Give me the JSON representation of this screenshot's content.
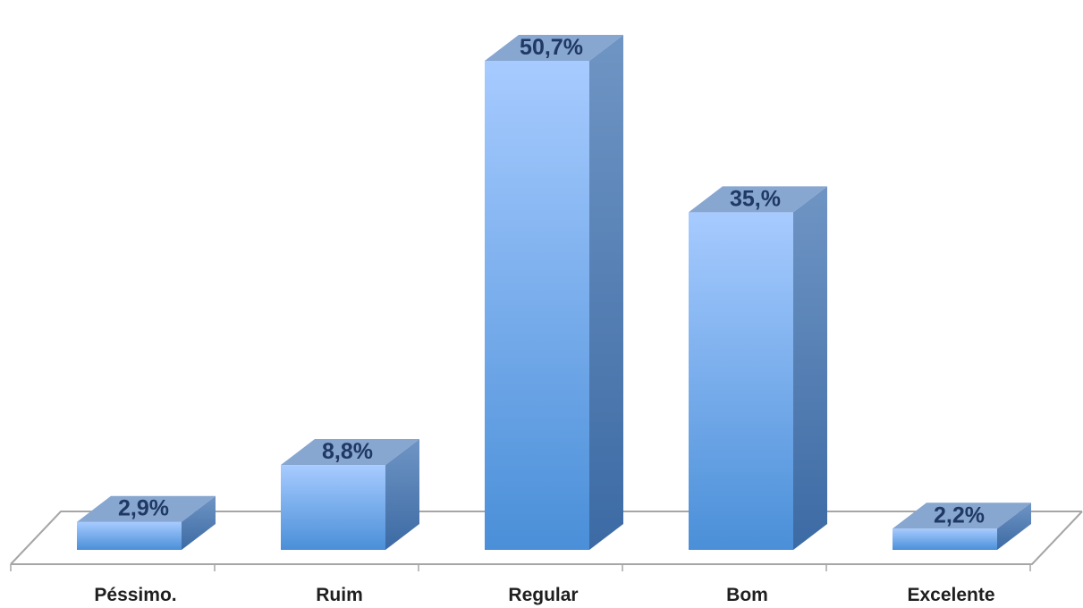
{
  "chart_data": {
    "type": "bar",
    "three_d": true,
    "categories": [
      "Péssimo.",
      "Ruim",
      "Regular",
      "Bom",
      "Excelente"
    ],
    "values": [
      2.9,
      8.8,
      50.7,
      35.0,
      2.2
    ],
    "value_labels": [
      "2,9%",
      "8,8%",
      "50,7%",
      "35,%",
      "2,2%"
    ],
    "title": "",
    "xlabel": "",
    "ylabel": "",
    "ylim": [
      0,
      50.7
    ],
    "grid": false,
    "legend": "none",
    "colors": {
      "front_top": "#a7cbff",
      "front_bottom": "#4a8fd8",
      "side_top": "#6f95c4",
      "side_bottom": "#3c6aa4",
      "top_face": "#87a6d0",
      "label": "#1f3864",
      "floor_line": "#a6a6a6"
    }
  }
}
